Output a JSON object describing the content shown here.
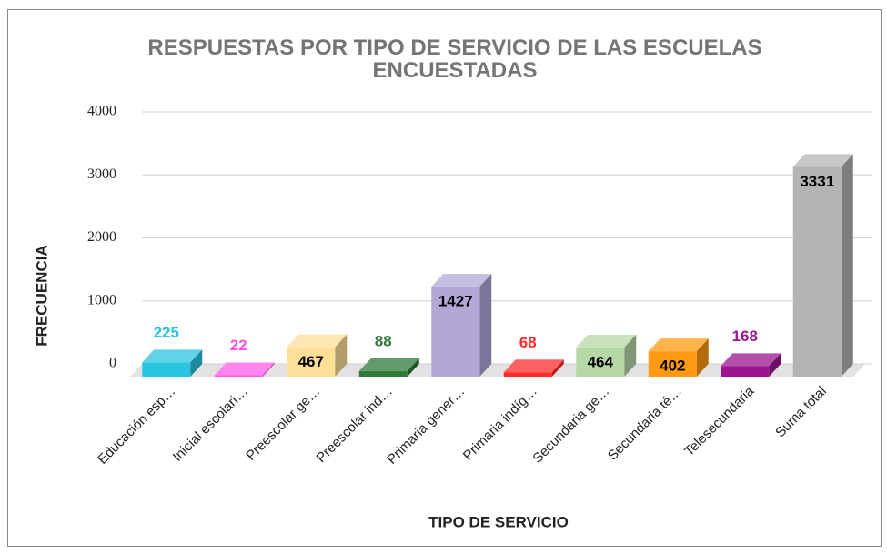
{
  "chart_data": {
    "type": "bar3d",
    "title": "RESPUESTAS POR TIPO DE SERVICIO DE LAS ESCUELAS ENCUESTADAS",
    "x_label": "TIPO DE SERVICIO",
    "y_label": "FRECUENCIA",
    "categories": [
      "Educación esp…",
      "Inicial escolari…",
      "Preescolar ge…",
      "Preescolar ind…",
      "Primaria gener…",
      "Primaria indíg…",
      "Secundaria ge…",
      "Secundaria té…",
      "Telesecundaria",
      "Suma total"
    ],
    "values": [
      225,
      22,
      467,
      88,
      1427,
      68,
      464,
      402,
      168,
      3331
    ],
    "colors": [
      "#29c4df",
      "#ff5ee8",
      "#fddf98",
      "#2f7a39",
      "#b3a7d8",
      "#ff2b2b",
      "#b5d8a6",
      "#ff9a12",
      "#9b1590",
      "#b4b4b4"
    ],
    "label_colors": [
      "#29c4df",
      "#ff4fe0",
      "#000000",
      "#2f7a39",
      "#000000",
      "#ff2b2b",
      "#000000",
      "#000000",
      "#9b1590",
      "#000000"
    ],
    "ylim": [
      0,
      4000
    ],
    "yticks": [
      0,
      1000,
      2000,
      3000,
      4000
    ],
    "grid": true
  }
}
